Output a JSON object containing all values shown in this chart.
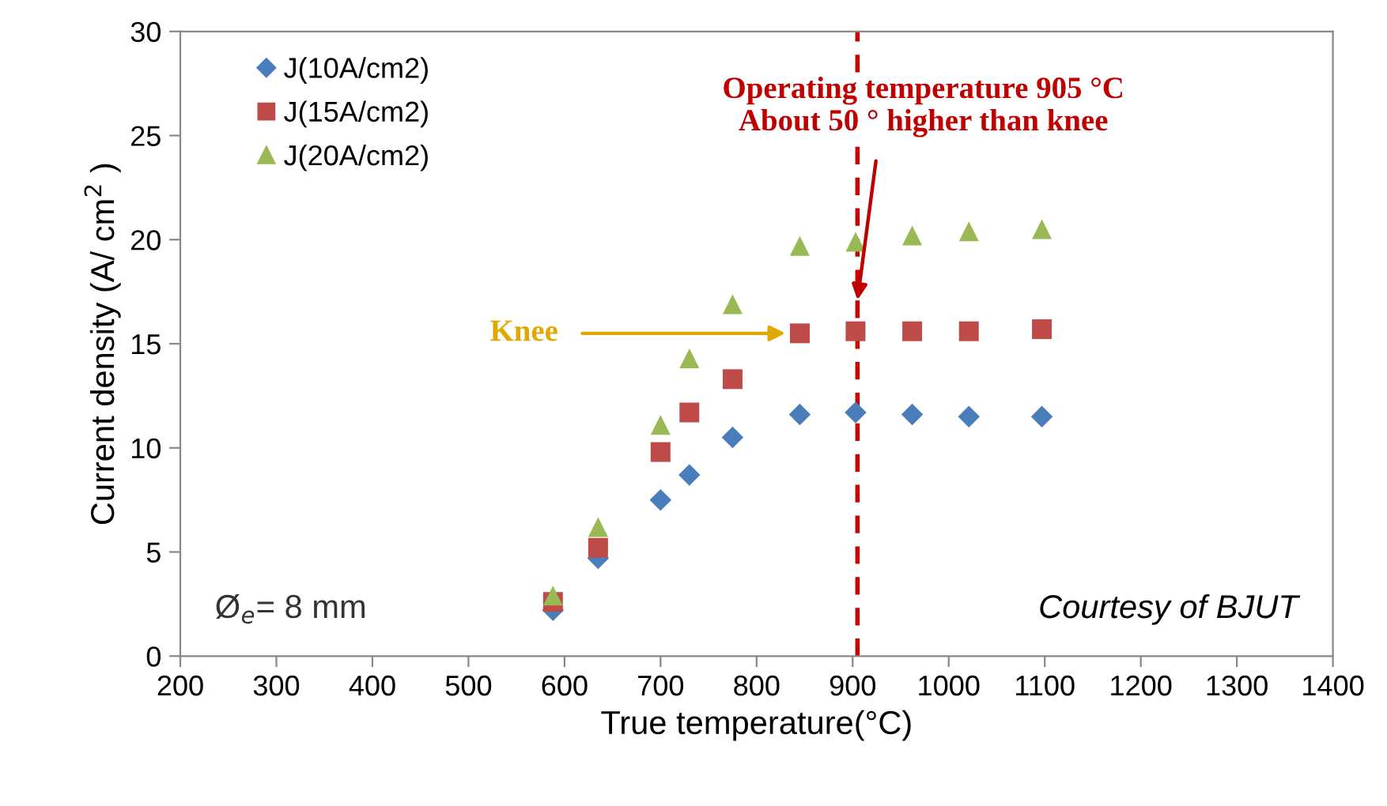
{
  "chart_data": {
    "type": "scatter",
    "xlabel": "True temperature(°C)",
    "ylabel": "Current density (A/ cm$^{2}$ )",
    "x": [
      588,
      635,
      700,
      730,
      775,
      845,
      903,
      962,
      1021,
      1097
    ],
    "series": [
      {
        "name": "J(10A/cm2)",
        "color": "#4a7ebb",
        "marker": "diamond",
        "values": [
          2.2,
          4.7,
          7.5,
          8.7,
          10.5,
          11.6,
          11.7,
          11.6,
          11.5,
          11.5
        ]
      },
      {
        "name": "J(15A/cm2)",
        "color": "#be4b48",
        "marker": "square",
        "values": [
          2.6,
          5.2,
          9.8,
          11.7,
          13.3,
          15.5,
          15.6,
          15.6,
          15.6,
          15.7
        ]
      },
      {
        "name": "J(20A/cm2)",
        "color": "#98b954",
        "marker": "triangle",
        "values": [
          2.9,
          6.2,
          11.1,
          14.3,
          16.9,
          19.7,
          19.9,
          20.2,
          20.4,
          20.5
        ]
      }
    ],
    "xlim": [
      200,
      1400
    ],
    "xticks": [
      200,
      300,
      400,
      500,
      600,
      700,
      800,
      900,
      1000,
      1100,
      1200,
      1300,
      1400
    ],
    "ylim": [
      0,
      30
    ],
    "yticks": [
      0,
      5,
      10,
      15,
      20,
      25,
      30
    ],
    "grid": false,
    "legend": "top left",
    "ref_lines": [
      {
        "axis": "x",
        "value": 905,
        "color": "#cc0000",
        "line_style": "dashed"
      }
    ],
    "annotations": [
      {
        "text": "Operating temperature 905 °C\nAbout 50 ° higher than knee",
        "x": 905,
        "y": 17.1
      },
      {
        "text": "Knee",
        "x": 830,
        "y": 15.5
      },
      "Ø$_{e}$= 8 mm",
      "Courtesy of BJUT"
    ]
  }
}
